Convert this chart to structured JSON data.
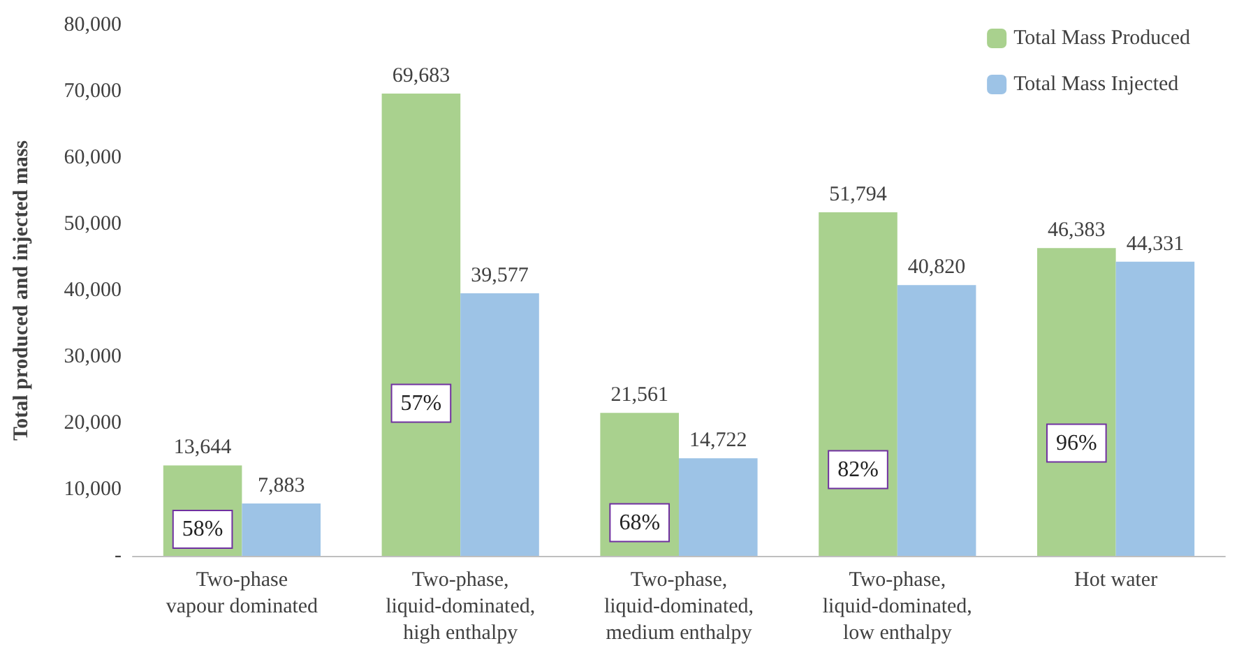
{
  "chart_data": {
    "type": "bar",
    "ylabel": "Total produced and injected mass",
    "categories": [
      "Two-phase\nvapour dominated",
      "Two-phase,\nliquid-dominated,\nhigh enthalpy",
      "Two-phase,\nliquid-dominated,\nmedium enthalpy",
      "Two-phase,\nliquid-dominated,\nlow enthalpy",
      "Hot water"
    ],
    "series": [
      {
        "name": "Total Mass Produced",
        "color": "#a9d18e",
        "values": [
          13644,
          69683,
          21561,
          51794,
          46383
        ],
        "value_labels": [
          "13,644",
          "69,683",
          "21,561",
          "51,794",
          "46,383"
        ]
      },
      {
        "name": "Total Mass Injected",
        "color": "#9dc3e6",
        "values": [
          7883,
          39577,
          14722,
          40820,
          44331
        ],
        "value_labels": [
          "7,883",
          "39,577",
          "14,722",
          "40,820",
          "44,331"
        ]
      }
    ],
    "ylim": [
      0,
      80000
    ],
    "yticks": [
      {
        "value": 0,
        "label": "-"
      },
      {
        "value": 10000,
        "label": "10,000"
      },
      {
        "value": 20000,
        "label": "20,000"
      },
      {
        "value": 30000,
        "label": "30,000"
      },
      {
        "value": 40000,
        "label": "40,000"
      },
      {
        "value": 50000,
        "label": "50,000"
      },
      {
        "value": 60000,
        "label": "60,000"
      },
      {
        "value": 70000,
        "label": "70,000"
      },
      {
        "value": 80000,
        "label": "80,000"
      }
    ],
    "annotations": [
      {
        "text": "58%",
        "x": "Two-phase\nvapour dominated",
        "y": 4000
      },
      {
        "text": "57%",
        "x": "Two-phase,\nliquid-dominated,\nhigh enthalpy",
        "y": 23000
      },
      {
        "text": "68%",
        "x": "Two-phase,\nliquid-dominated,\nmedium enthalpy",
        "y": 5000
      },
      {
        "text": "82%",
        "x": "Two-phase,\nliquid-dominated,\nlow enthalpy",
        "y": 13000
      },
      {
        "text": "96%",
        "x": "Hot water",
        "y": 17000
      }
    ],
    "legend": "top right",
    "grid": false
  }
}
